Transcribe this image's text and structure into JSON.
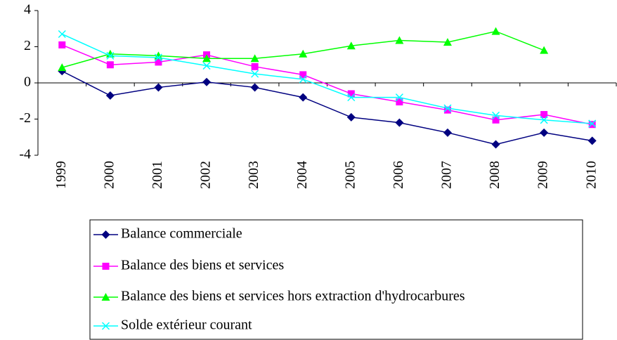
{
  "chart_data": {
    "type": "line",
    "categories": [
      "1999",
      "2000",
      "2001",
      "2002",
      "2003",
      "2004",
      "2005",
      "2006",
      "2007",
      "2008",
      "2009",
      "2010"
    ],
    "series": [
      {
        "name": "Balance commerciale",
        "color": "#000080",
        "marker": "diamond",
        "values": [
          0.65,
          -0.7,
          -0.25,
          0.05,
          -0.25,
          -0.8,
          -1.9,
          -2.2,
          -2.75,
          -3.4,
          -2.75,
          -3.2
        ]
      },
      {
        "name": "Balance des biens et services",
        "color": "#ff00ff",
        "marker": "square",
        "values": [
          2.1,
          1.0,
          1.15,
          1.55,
          0.9,
          0.45,
          -0.6,
          -1.05,
          -1.5,
          -2.05,
          -1.75,
          -2.3
        ]
      },
      {
        "name": "Balance des biens et services hors extraction d'hydrocarbures",
        "color": "#00ff00",
        "marker": "triangle",
        "values": [
          0.85,
          1.6,
          1.5,
          1.35,
          1.35,
          1.6,
          2.05,
          2.35,
          2.25,
          2.85,
          1.8,
          null
        ]
      },
      {
        "name": "Solde extérieur courant",
        "color": "#00ffff",
        "marker": "x",
        "values": [
          2.7,
          1.5,
          1.4,
          0.95,
          0.5,
          0.2,
          -0.8,
          -0.8,
          -1.4,
          -1.8,
          -2.05,
          -2.25
        ]
      }
    ],
    "ylim": [
      -4,
      4
    ],
    "yticks": [
      -4,
      -2,
      0,
      2,
      4
    ],
    "grid": false
  }
}
